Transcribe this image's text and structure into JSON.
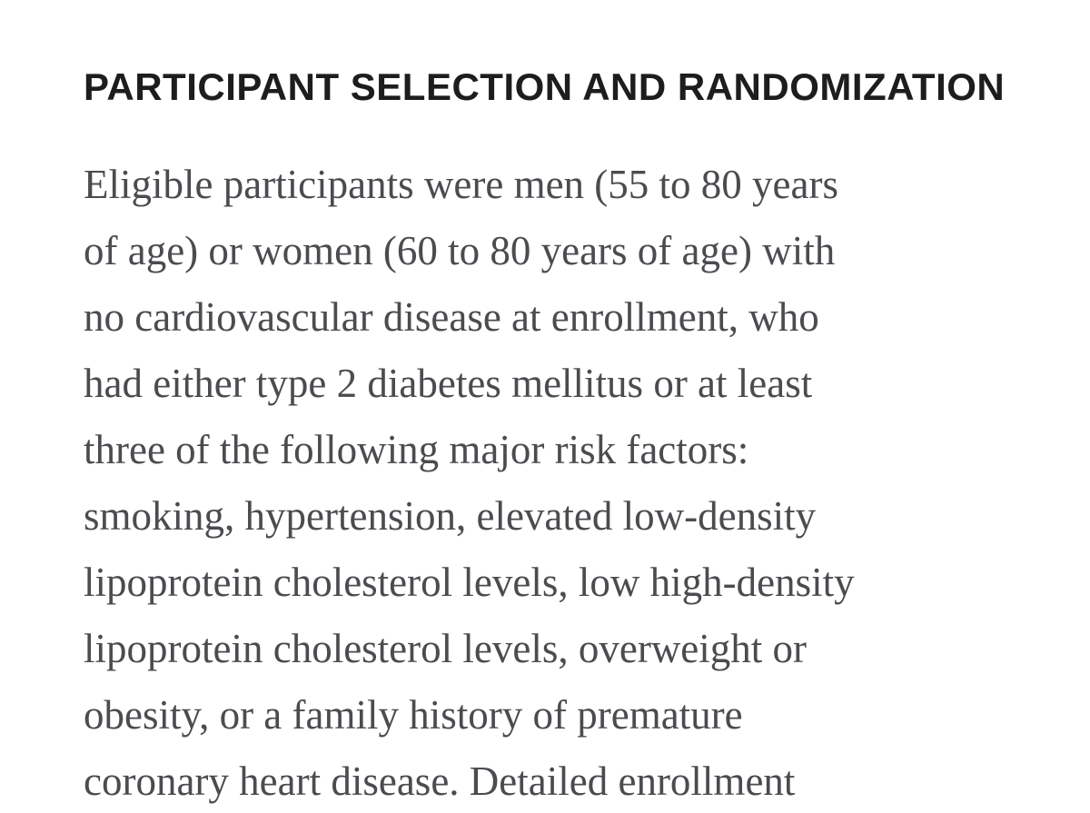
{
  "document": {
    "heading": "PARTICIPANT SELECTION AND RANDOMIZATION",
    "paragraph_lines": [
      "Eligible participants were men (55 to 80 years",
      "of age) or women (60 to 80 years of age) with",
      "no cardiovascular disease at enrollment, who",
      "had either type 2 diabetes mellitus or at least",
      "three of the following major risk factors:",
      "smoking, hypertension, elevated low-density",
      "lipoprotein cholesterol levels, low high-density",
      "lipoprotein cholesterol levels, overweight or",
      "obesity, or a family history of premature",
      "coronary heart disease. Detailed enrollment"
    ],
    "colors": {
      "background": "#ffffff",
      "heading_text": "#1d1d1f",
      "body_text": "#4b4b50"
    }
  }
}
